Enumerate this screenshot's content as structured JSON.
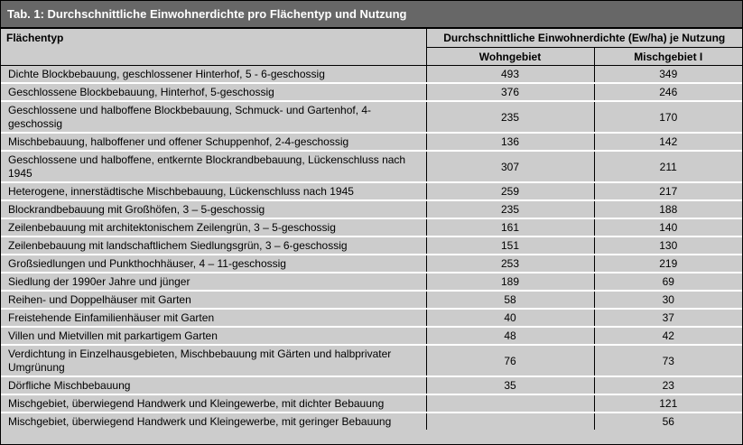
{
  "title": "Tab. 1: Durchschnittliche Einwohnerdichte pro Flächentyp und Nutzung",
  "header": {
    "col_type": "Flächentyp",
    "col_group": "Durchschnittliche Einwohnerdichte (Ew/ha) je Nutzung",
    "col_wohn": "Wohngebiet",
    "col_misch": "Mischgebiet I"
  },
  "rows": [
    {
      "type": "Dichte Blockbebauung, geschlossener Hinterhof, 5 - 6-geschossig",
      "wohn": "493",
      "misch": "349"
    },
    {
      "type": "Geschlossene Blockbebauung, Hinterhof, 5-geschossig",
      "wohn": "376",
      "misch": "246"
    },
    {
      "type": "Geschlossene und halboffene Blockbebauung, Schmuck- und Gartenhof, 4-geschossig",
      "wohn": "235",
      "misch": "170"
    },
    {
      "type": "Mischbebauung, halboffener und offener Schuppenhof, 2-4-geschossig",
      "wohn": "136",
      "misch": "142"
    },
    {
      "type": "Geschlossene und halboffene, entkernte Blockrandbebauung, Lückenschluss nach 1945",
      "wohn": "307",
      "misch": "211"
    },
    {
      "type": "Heterogene, innerstädtische Mischbebauung, Lückenschluss nach 1945",
      "wohn": "259",
      "misch": "217"
    },
    {
      "type": "Blockrandbebauung mit Großhöfen, 3 – 5-geschossig",
      "wohn": "235",
      "misch": "188"
    },
    {
      "type": "Zeilenbebauung mit architektonischem Zeilengrün, 3 – 5-geschossig",
      "wohn": "161",
      "misch": "140"
    },
    {
      "type": "Zeilenbebauung mit landschaftlichem Siedlungsgrün, 3 – 6-geschossig",
      "wohn": "151",
      "misch": "130"
    },
    {
      "type": "Großsiedlungen und Punkthochhäuser, 4 – 11-geschossig",
      "wohn": "253",
      "misch": "219"
    },
    {
      "type": "Siedlung der 1990er Jahre und jünger",
      "wohn": "189",
      "misch": "69"
    },
    {
      "type": "Reihen- und Doppelhäuser mit Garten",
      "wohn": "58",
      "misch": "30"
    },
    {
      "type": "Freistehende Einfamilienhäuser mit Garten",
      "wohn": "40",
      "misch": "37"
    },
    {
      "type": "Villen und Mietvillen mit parkartigem Garten",
      "wohn": "48",
      "misch": "42"
    },
    {
      "type": "Verdichtung in Einzelhausgebieten, Mischbebauung mit Gärten und halbprivater Umgrünung",
      "wohn": "76",
      "misch": "73"
    },
    {
      "type": "Dörfliche Mischbebauung",
      "wohn": "35",
      "misch": "23"
    },
    {
      "type": "Mischgebiet, überwiegend Handwerk und Kleingewerbe, mit dichter Bebauung",
      "wohn": "",
      "misch": "121"
    },
    {
      "type": "Mischgebiet, überwiegend Handwerk und Kleingewerbe, mit geringer Bebauung",
      "wohn": "",
      "misch": "56"
    }
  ]
}
